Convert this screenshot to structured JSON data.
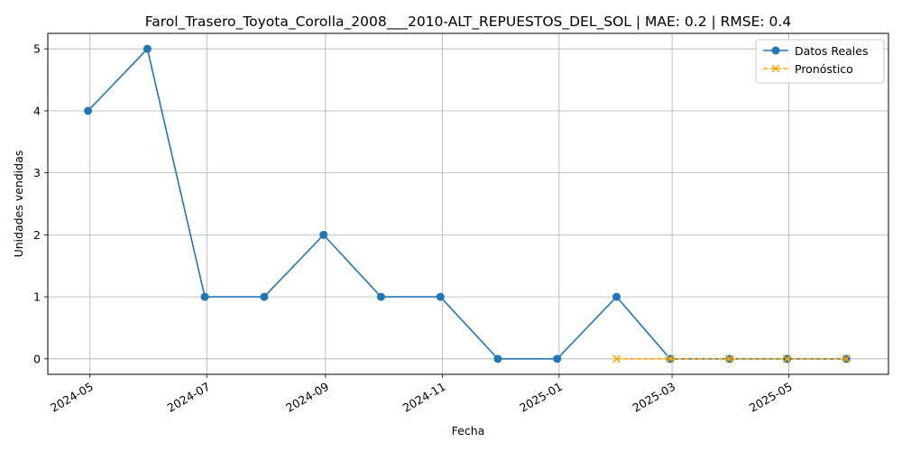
{
  "chart_data": {
    "type": "line",
    "title": "Farol_Trasero_Toyota_Corolla_2008___2010-ALT_REPUESTOS_DEL_SOL | MAE: 0.2 | RMSE: 0.4",
    "xlabel": "Fecha",
    "ylabel": "Unidades vendidas",
    "xlim": [
      "2024-04-09",
      "2025-06-22"
    ],
    "ylim": [
      -0.25,
      5.25
    ],
    "x_ticks": [
      "2024-05",
      "2024-07",
      "2024-09",
      "2024-11",
      "2025-01",
      "2025-03",
      "2025-05"
    ],
    "x_tick_dates": [
      "2024-05-01",
      "2024-07-01",
      "2024-09-01",
      "2024-11-01",
      "2025-01-01",
      "2025-03-01",
      "2025-05-01"
    ],
    "y_ticks": [
      0,
      1,
      2,
      3,
      4,
      5
    ],
    "grid": true,
    "legend_position": "top-right",
    "series": [
      {
        "name": "Datos Reales",
        "color": "#1f77b4",
        "style": "solid",
        "marker": "circle",
        "x": [
          "2024-04-30",
          "2024-05-31",
          "2024-06-30",
          "2024-07-31",
          "2024-08-31",
          "2024-09-30",
          "2024-10-31",
          "2024-11-30",
          "2024-12-31",
          "2025-01-31",
          "2025-02-28",
          "2025-03-31",
          "2025-04-30",
          "2025-05-31"
        ],
        "values": [
          4,
          5,
          1,
          1,
          2,
          1,
          1,
          0,
          0,
          1,
          0,
          0,
          0,
          0
        ]
      },
      {
        "name": "Pronóstico",
        "color": "#ffa500",
        "style": "dashed",
        "marker": "x",
        "x": [
          "2025-01-31",
          "2025-02-28",
          "2025-03-31",
          "2025-04-30",
          "2025-05-31"
        ],
        "values": [
          0,
          0,
          0,
          0,
          0
        ]
      }
    ]
  }
}
